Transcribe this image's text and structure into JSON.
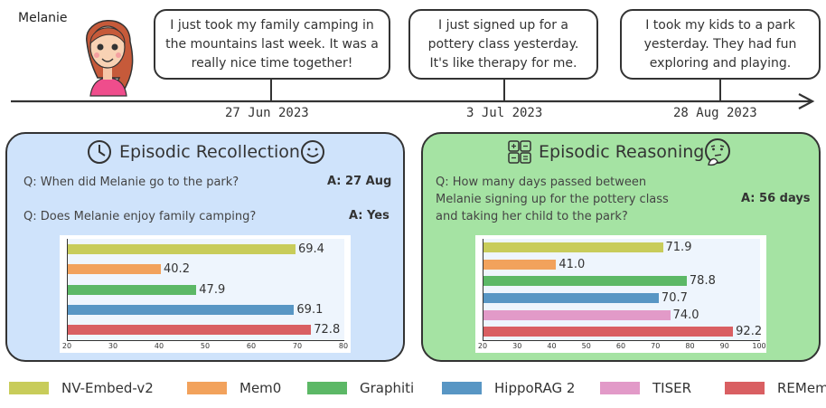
{
  "speaker": "Melanie",
  "messages": [
    {
      "text": "I just took my family camping in the mountains last week. It was a really nice time together!"
    },
    {
      "text": "I just signed up for a pottery class yesterday. It's like therapy for me."
    },
    {
      "text": "I took my kids to a park yesterday. They had fun exploring and playing."
    }
  ],
  "dates": [
    "27 Jun 2023",
    "3 Jul 2023",
    "28 Aug 2023"
  ],
  "colors": {
    "NV-Embed-v2": "#c8cc5a",
    "Mem0": "#f2a25c",
    "Graphiti": "#5cb866",
    "HippoRAG 2": "#5896c4",
    "TISER": "#e29ac8",
    "REMem": "#d95f62",
    "recollection_bg": "#cfe3fb",
    "reasoning_bg": "#a5e3a3"
  },
  "recollection": {
    "title": "Episodic Recollection",
    "qa": [
      {
        "q": "Q: When did Melanie go to the park?",
        "a": "A: 27 Aug"
      },
      {
        "q": "Q: Does Melanie enjoy family camping?",
        "a": "A: Yes"
      }
    ]
  },
  "reasoning": {
    "title": "Episodic Reasoning",
    "q_lines": [
      "Q: How many days passed between",
      "Melanie signing up for the pottery class",
      "and taking her child to the park?"
    ],
    "a": "A: 56 days"
  },
  "chart_data": [
    {
      "type": "bar",
      "orientation": "horizontal",
      "categories": [
        "NV-Embed-v2",
        "Mem0",
        "Graphiti",
        "HippoRAG 2",
        "REMem"
      ],
      "values": [
        69.4,
        40.2,
        47.9,
        69.1,
        72.8
      ],
      "value_labels": [
        "69.4",
        "40.2",
        "47.9",
        "69.1",
        "72.8"
      ],
      "xlim": [
        20,
        80
      ],
      "ticks": [
        "20",
        "30",
        "40",
        "50",
        "60",
        "70",
        "80"
      ]
    },
    {
      "type": "bar",
      "orientation": "horizontal",
      "categories": [
        "NV-Embed-v2",
        "Mem0",
        "Graphiti",
        "HippoRAG 2",
        "TISER",
        "REMem"
      ],
      "values": [
        71.9,
        41.0,
        78.8,
        70.7,
        74.0,
        92.2
      ],
      "value_labels": [
        "71.9",
        "41.0",
        "78.8",
        "70.7",
        "74.0",
        "92.2"
      ],
      "xlim": [
        20,
        100
      ],
      "ticks": [
        "20",
        "30",
        "40",
        "50",
        "60",
        "70",
        "80",
        "90",
        "100"
      ]
    }
  ],
  "legend": [
    "NV-Embed-v2",
    "Mem0",
    "Graphiti",
    "HippoRAG 2",
    "TISER",
    "REMem"
  ]
}
